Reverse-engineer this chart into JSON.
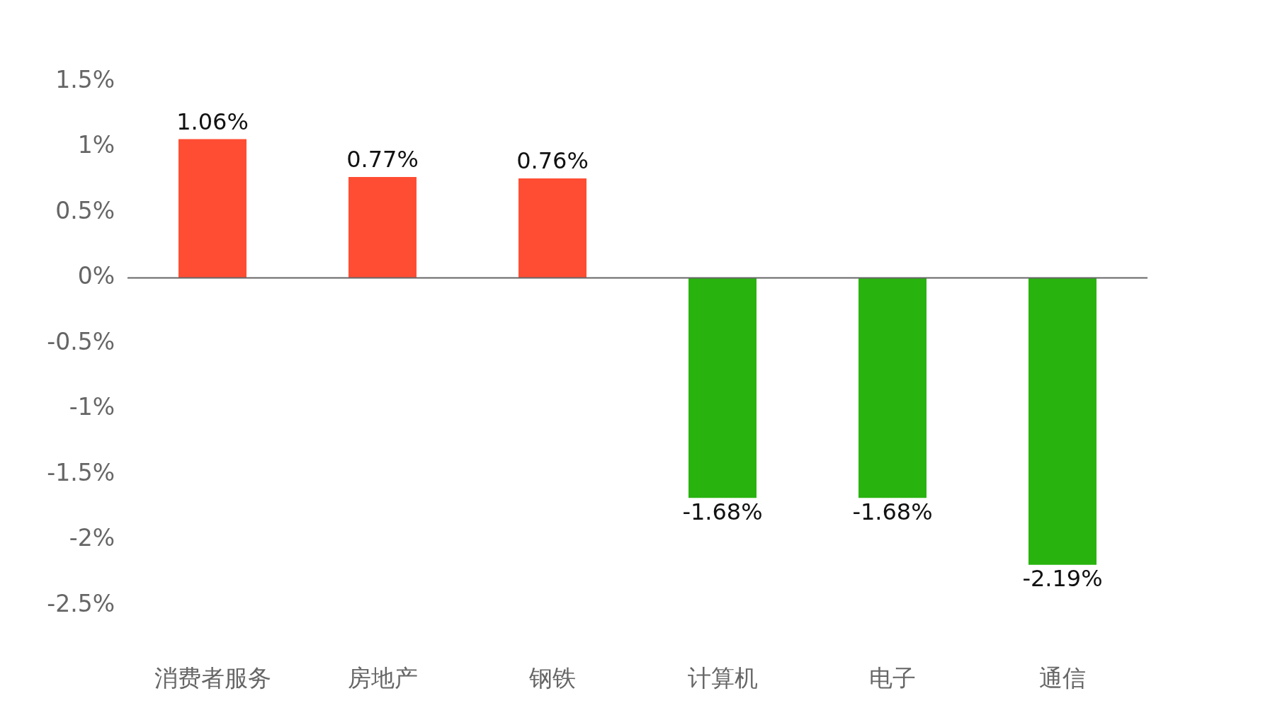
{
  "chart_data": {
    "type": "bar",
    "categories": [
      "消费者服务",
      "房地产",
      "钢铁",
      "计算机",
      "电子",
      "通信"
    ],
    "values": [
      1.06,
      0.77,
      0.76,
      -1.68,
      -1.68,
      -2.19
    ],
    "colors": [
      "#ff4d33",
      "#ff4d33",
      "#ff4d33",
      "#28b30f",
      "#28b30f",
      "#28b30f"
    ],
    "value_labels": [
      "1.06%",
      "0.77%",
      "0.76%",
      "-1.68%",
      "-1.68%",
      "-2.19%"
    ],
    "ylim": [
      -2.5,
      1.5
    ],
    "yticks": [
      {
        "value": 1.5,
        "label": "1.5%"
      },
      {
        "value": 1,
        "label": "1%"
      },
      {
        "value": 0.5,
        "label": "0.5%"
      },
      {
        "value": 0,
        "label": "0%"
      },
      {
        "value": -0.5,
        "label": "-0.5%"
      },
      {
        "value": -1,
        "label": "-1%"
      },
      {
        "value": -1.5,
        "label": "-1.5%"
      },
      {
        "value": -2,
        "label": "-2%"
      },
      {
        "value": -2.5,
        "label": "-2.5%"
      }
    ],
    "ref_lines": [
      {
        "axis": "y",
        "value": 0,
        "color": "#666666"
      }
    ],
    "grid": false,
    "legend": false
  }
}
